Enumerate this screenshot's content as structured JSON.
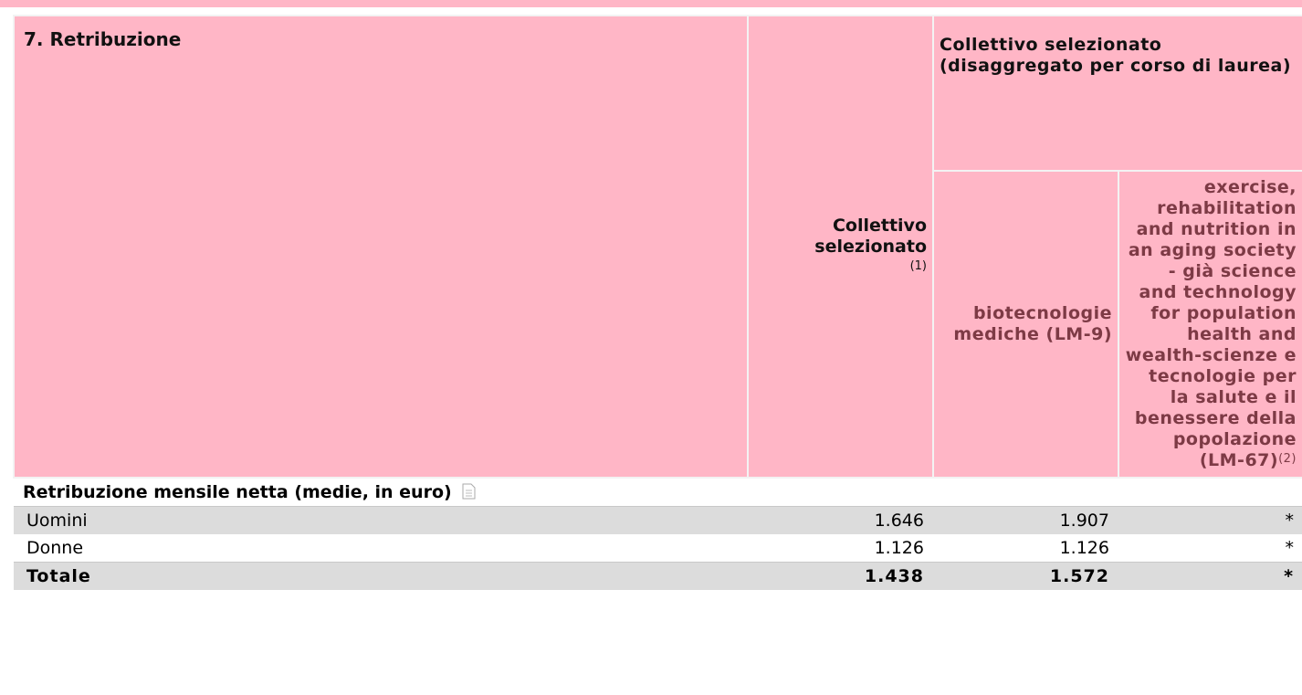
{
  "table": {
    "title": "7. Retribuzione",
    "header": {
      "collettivo": "Collettivo selezionato",
      "collettivo_note": "(1)",
      "group": "Collettivo selezionato (disaggregato per corso di laurea)",
      "courses": [
        {
          "name": "biotecnologie mediche (LM-9)"
        },
        {
          "name": "exercise, rehabilitation and nutrition in an aging society - già science and technology for population health and wealth-scienze e tecnologie per la salute e il benessere della popolazione (LM-67)",
          "note": "(2)"
        }
      ]
    },
    "section": "Retribuzione mensile netta (medie, in euro)",
    "rows": [
      [
        "Uomini",
        "1.646",
        "1.907",
        "*"
      ],
      [
        "Donne",
        "1.126",
        "1.126",
        "*"
      ],
      [
        "Totale",
        "1.438",
        "1.572",
        "*"
      ]
    ]
  }
}
